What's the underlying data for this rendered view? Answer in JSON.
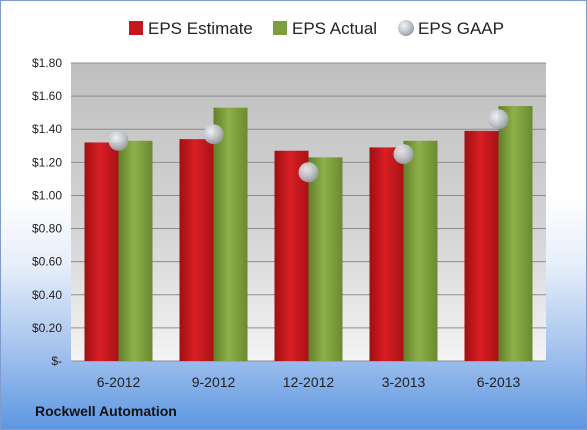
{
  "chart_data": {
    "type": "bar",
    "title": "",
    "xlabel": "",
    "ylabel": "",
    "categories": [
      "6-2012",
      "9-2012",
      "12-2012",
      "3-2013",
      "6-2013"
    ],
    "series": [
      {
        "name": "EPS Estimate",
        "kind": "bar",
        "color": "#c8171c",
        "values": [
          1.32,
          1.34,
          1.27,
          1.29,
          1.39
        ]
      },
      {
        "name": "EPS Actual",
        "kind": "bar",
        "color": "#7d9e3c",
        "values": [
          1.33,
          1.53,
          1.23,
          1.33,
          1.54
        ]
      },
      {
        "name": "EPS GAAP",
        "kind": "scatter",
        "color": "#b9bec6",
        "values": [
          1.33,
          1.37,
          1.14,
          1.25,
          1.46
        ]
      }
    ],
    "ylim": [
      0,
      1.8
    ],
    "ytick_labels": [
      "$-",
      "$0.20",
      "$0.40",
      "$0.60",
      "$0.80",
      "$1.00",
      "$1.20",
      "$1.40",
      "$1.60",
      "$1.80"
    ],
    "yticks": [
      0,
      0.2,
      0.4,
      0.6,
      0.8,
      1.0,
      1.2,
      1.4,
      1.6,
      1.8
    ],
    "grid": true,
    "legend_position": "top"
  },
  "footer": {
    "company": "Rockwell Automation"
  }
}
